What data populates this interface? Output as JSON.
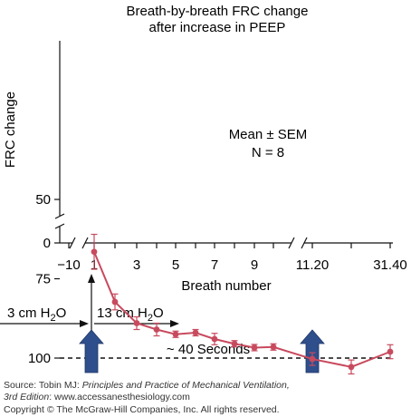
{
  "chart_data": {
    "type": "line",
    "title_lines": [
      "Breath-by-breath FRC change",
      "after increase in PEEP"
    ],
    "xlabel": "Breath number",
    "ylabel": "FRC change",
    "ylim": [
      0,
      100
    ],
    "y_ticks": [
      "0",
      "50",
      "75",
      "100"
    ],
    "x_ticks": [
      "−10",
      "1",
      "3",
      "5",
      "7",
      "9",
      "11.20",
      "31.40"
    ],
    "reference_line": {
      "y": 100,
      "style": "dashed"
    },
    "annotation_lines": [
      "Mean ± SEM",
      "N = 8"
    ],
    "series": [
      {
        "x": [
          "1",
          "2",
          "3",
          "4",
          "5",
          "6",
          "7",
          "8",
          "9",
          "10",
          "11.20",
          "21.30",
          "31.40"
        ],
        "y": [
          66.5,
          82.3,
          89,
          91,
          92.5,
          92,
          94,
          95.5,
          96.7,
          96.5,
          100.3,
          102.8,
          98
        ],
        "sem": [
          5.5,
          2.5,
          2,
          2,
          1,
          1,
          1.8,
          1,
          1,
          1,
          2,
          2.2,
          2.2
        ],
        "color": "#c84a5e"
      }
    ]
  },
  "schematic": {
    "left_pressure": {
      "text": "3 cm H",
      "sub": "2",
      "suffix": "O"
    },
    "right_pressure": {
      "text": "13 cm H",
      "sub": "2",
      "suffix": "O"
    },
    "duration": "~ 40 Seconds",
    "marker_color": "#2f4f8c"
  },
  "source": {
    "line1_prefix": "Source: Tobin MJ: ",
    "line1_italic": "Principles and Practice of Mechanical Ventilation,",
    "line2_italic": "3rd Edition",
    "line2_rest": ": www.accessanesthesiology.com",
    "line3": "Copyright © The McGraw-Hill Companies, Inc. All rights reserved."
  }
}
